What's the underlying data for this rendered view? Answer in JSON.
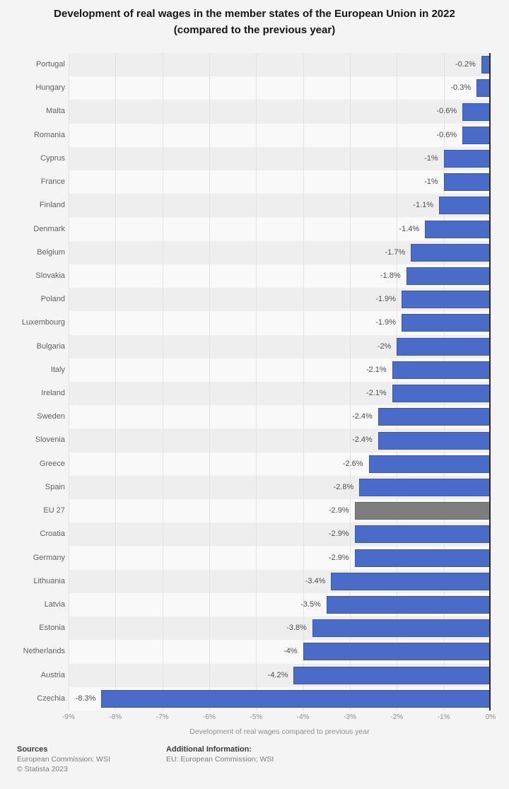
{
  "chart_data": {
    "type": "bar",
    "orientation": "horizontal",
    "title_line1": "Development of real wages in the member states of the European Union in 2022",
    "title_line2": "(compared to the previous year)",
    "categories": [
      "Portugal",
      "Hungary",
      "Malta",
      "Romania",
      "Cyprus",
      "France",
      "Finland",
      "Denmark",
      "Belgium",
      "Slovakia",
      "Poland",
      "Luxembourg",
      "Bulgaria",
      "Italy",
      "Ireland",
      "Sweden",
      "Slovenia",
      "Greece",
      "Spain",
      "EU 27",
      "Croatia",
      "Germany",
      "Lithuania",
      "Latvia",
      "Estonia",
      "Netherlands",
      "Austria",
      "Czechia"
    ],
    "values": [
      -0.2,
      -0.3,
      -0.6,
      -0.6,
      -1,
      -1,
      -1.1,
      -1.4,
      -1.7,
      -1.8,
      -1.9,
      -1.9,
      -2,
      -2.1,
      -2.1,
      -2.4,
      -2.4,
      -2.6,
      -2.8,
      -2.9,
      -2.9,
      -2.9,
      -3.4,
      -3.5,
      -3.8,
      -4,
      -4.2,
      -8.3
    ],
    "value_labels": [
      "-0.2%",
      "-0.3%",
      "-0.6%",
      "-0.6%",
      "-1%",
      "-1%",
      "-1.1%",
      "-1.4%",
      "-1.7%",
      "-1.8%",
      "-1.9%",
      "-1.9%",
      "-2%",
      "-2.1%",
      "-2.1%",
      "-2.4%",
      "-2.4%",
      "-2.6%",
      "-2.8%",
      "-2.9%",
      "-2.9%",
      "-2.9%",
      "-3.4%",
      "-3.5%",
      "-3.8%",
      "-4%",
      "-4.2%",
      "-8.3%"
    ],
    "xlabel": "Development of real wages compared to previous year",
    "xlim": [
      -9,
      0
    ],
    "xticks": [
      "-9%",
      "-8%",
      "-7%",
      "-6%",
      "-5%",
      "-4%",
      "-3%",
      "-2%",
      "-1%",
      "0%"
    ],
    "grid": true,
    "legend": "none",
    "bar_color": "#4a6cc8",
    "highlight_category": "EU 27",
    "highlight_color": "#7d7d7d"
  },
  "footer": {
    "sources_label": "Sources",
    "sources_text": "European Commission; WSI",
    "copyright": "© Statista 2023",
    "additional_label": "Additional Information:",
    "additional_text": "EU: European Commission; WSI"
  }
}
